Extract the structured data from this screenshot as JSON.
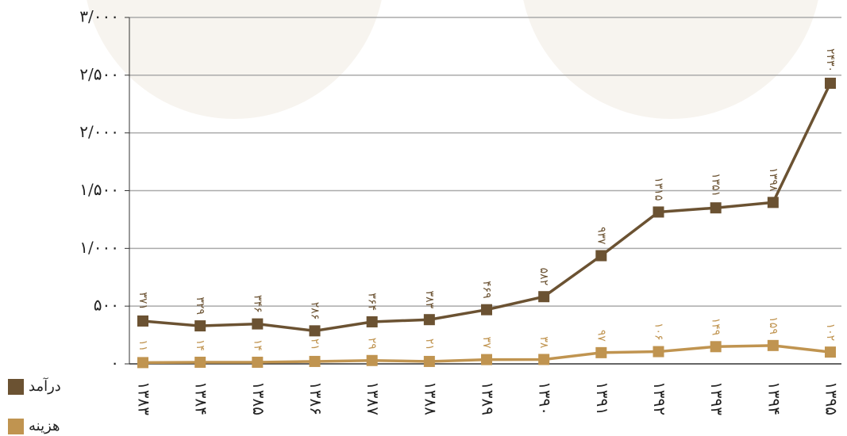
{
  "chart_data": {
    "type": "line",
    "categories": [
      "۱۳۸۳",
      "۱۳۸۴",
      "۱۳۸۵",
      "۱۳۸۶",
      "۱۳۸۷",
      "۱۳۸۸",
      "۱۳۸۹",
      "۱۳۹۰",
      "۱۳۹۱",
      "۱۳۹۲",
      "۱۳۹۳",
      "۱۳۹۴",
      "۱۳۹۵"
    ],
    "series": [
      {
        "name": "درآمد",
        "color": "#6b5232",
        "values": [
          371,
          329,
          346,
          286,
          364,
          383,
          469,
          582,
          937,
          1315,
          1351,
          1398,
          2430
        ],
        "value_labels": [
          "۳۷۱",
          "۳۲۹",
          "۳۴۶",
          "۲۸۶",
          "۳۶۴",
          "۳۸۳",
          "۴۶۹",
          "۵۸۲",
          "۹۳۷",
          "۱۳۱۵",
          "۱۳۵۱",
          "۱۳۹۸",
          "۲۴۳۰"
        ]
      },
      {
        "name": "هزینه",
        "color": "#c09450",
        "values": [
          11,
          14,
          14,
          21,
          29,
          21,
          37,
          38,
          97,
          106,
          149,
          159,
          102
        ],
        "value_labels": [
          "۱۱",
          "۱۴",
          "۱۴",
          "۲۱",
          "۲۹",
          "۲۱",
          "۳۷",
          "۳۸",
          "۹۷",
          "۱۰۶",
          "۱۴۹",
          "۱۵۹",
          "۱۰۲"
        ]
      }
    ],
    "ylim": [
      0,
      3000
    ],
    "yticks": [
      {
        "value": 0,
        "label": "۰"
      },
      {
        "value": 500,
        "label": "۵۰۰"
      },
      {
        "value": 1000,
        "label": "۱/۰۰۰"
      },
      {
        "value": 1500,
        "label": "۱/۵۰۰"
      },
      {
        "value": 2000,
        "label": "۲/۰۰۰"
      },
      {
        "value": 2500,
        "label": "۲/۵۰۰"
      },
      {
        "value": 3000,
        "label": "۳/۰۰۰"
      }
    ],
    "grid": true,
    "legend": "bottom-left"
  }
}
